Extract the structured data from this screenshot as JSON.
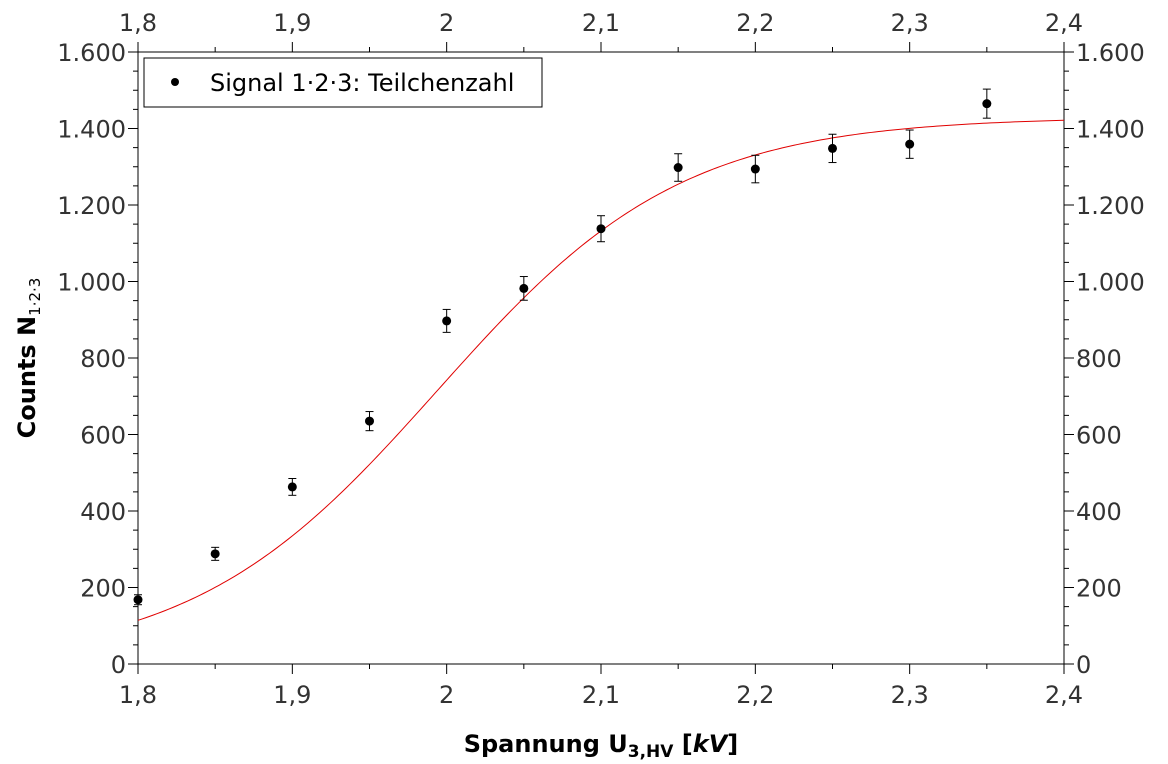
{
  "chart_data": {
    "type": "scatter",
    "title": "",
    "xlabel": {
      "main": "Spannung U",
      "sub": "3,HV",
      "unit_open": " [",
      "unit": "kV",
      "unit_close": "]"
    },
    "ylabel": {
      "main": "Counts N",
      "sub": "1·2·3"
    },
    "xlim": [
      1.8,
      2.4
    ],
    "ylim": [
      0,
      1600
    ],
    "x_ticks": [
      {
        "value": 1.8,
        "label": "1,8"
      },
      {
        "value": 1.9,
        "label": "1,9"
      },
      {
        "value": 2.0,
        "label": "2"
      },
      {
        "value": 2.1,
        "label": "2,1"
      },
      {
        "value": 2.2,
        "label": "2,2"
      },
      {
        "value": 2.3,
        "label": "2,3"
      },
      {
        "value": 2.4,
        "label": "2,4"
      }
    ],
    "y_ticks": [
      {
        "value": 0,
        "label": "0"
      },
      {
        "value": 200,
        "label": "200"
      },
      {
        "value": 400,
        "label": "400"
      },
      {
        "value": 600,
        "label": "600"
      },
      {
        "value": 800,
        "label": "800"
      },
      {
        "value": 1000,
        "label": "1.000"
      },
      {
        "value": 1200,
        "label": "1.200"
      },
      {
        "value": 1400,
        "label": "1.400"
      },
      {
        "value": 1600,
        "label": "1.600"
      }
    ],
    "x_minor_per_major": 2,
    "y_minor_per_major": 4,
    "grid": false,
    "legend_position": "top-left",
    "series": [
      {
        "name": "Signal 1·2·3: Teilchenzahl",
        "color": "#000000",
        "marker": "circle",
        "points": [
          {
            "x": 1.8,
            "y": 168,
            "err": 13
          },
          {
            "x": 1.85,
            "y": 288,
            "err": 17
          },
          {
            "x": 1.9,
            "y": 463,
            "err": 22
          },
          {
            "x": 1.95,
            "y": 635,
            "err": 25
          },
          {
            "x": 2.0,
            "y": 897,
            "err": 30
          },
          {
            "x": 2.05,
            "y": 982,
            "err": 31
          },
          {
            "x": 2.1,
            "y": 1138,
            "err": 34
          },
          {
            "x": 2.15,
            "y": 1298,
            "err": 36
          },
          {
            "x": 2.2,
            "y": 1294,
            "err": 36
          },
          {
            "x": 2.25,
            "y": 1348,
            "err": 37
          },
          {
            "x": 2.3,
            "y": 1359,
            "err": 37
          },
          {
            "x": 2.35,
            "y": 1465,
            "err": 38
          }
        ]
      }
    ],
    "fit": {
      "color": "#e00000",
      "function": "logistic",
      "A": 1430,
      "x0": 1.994,
      "k": 12.6
    }
  }
}
